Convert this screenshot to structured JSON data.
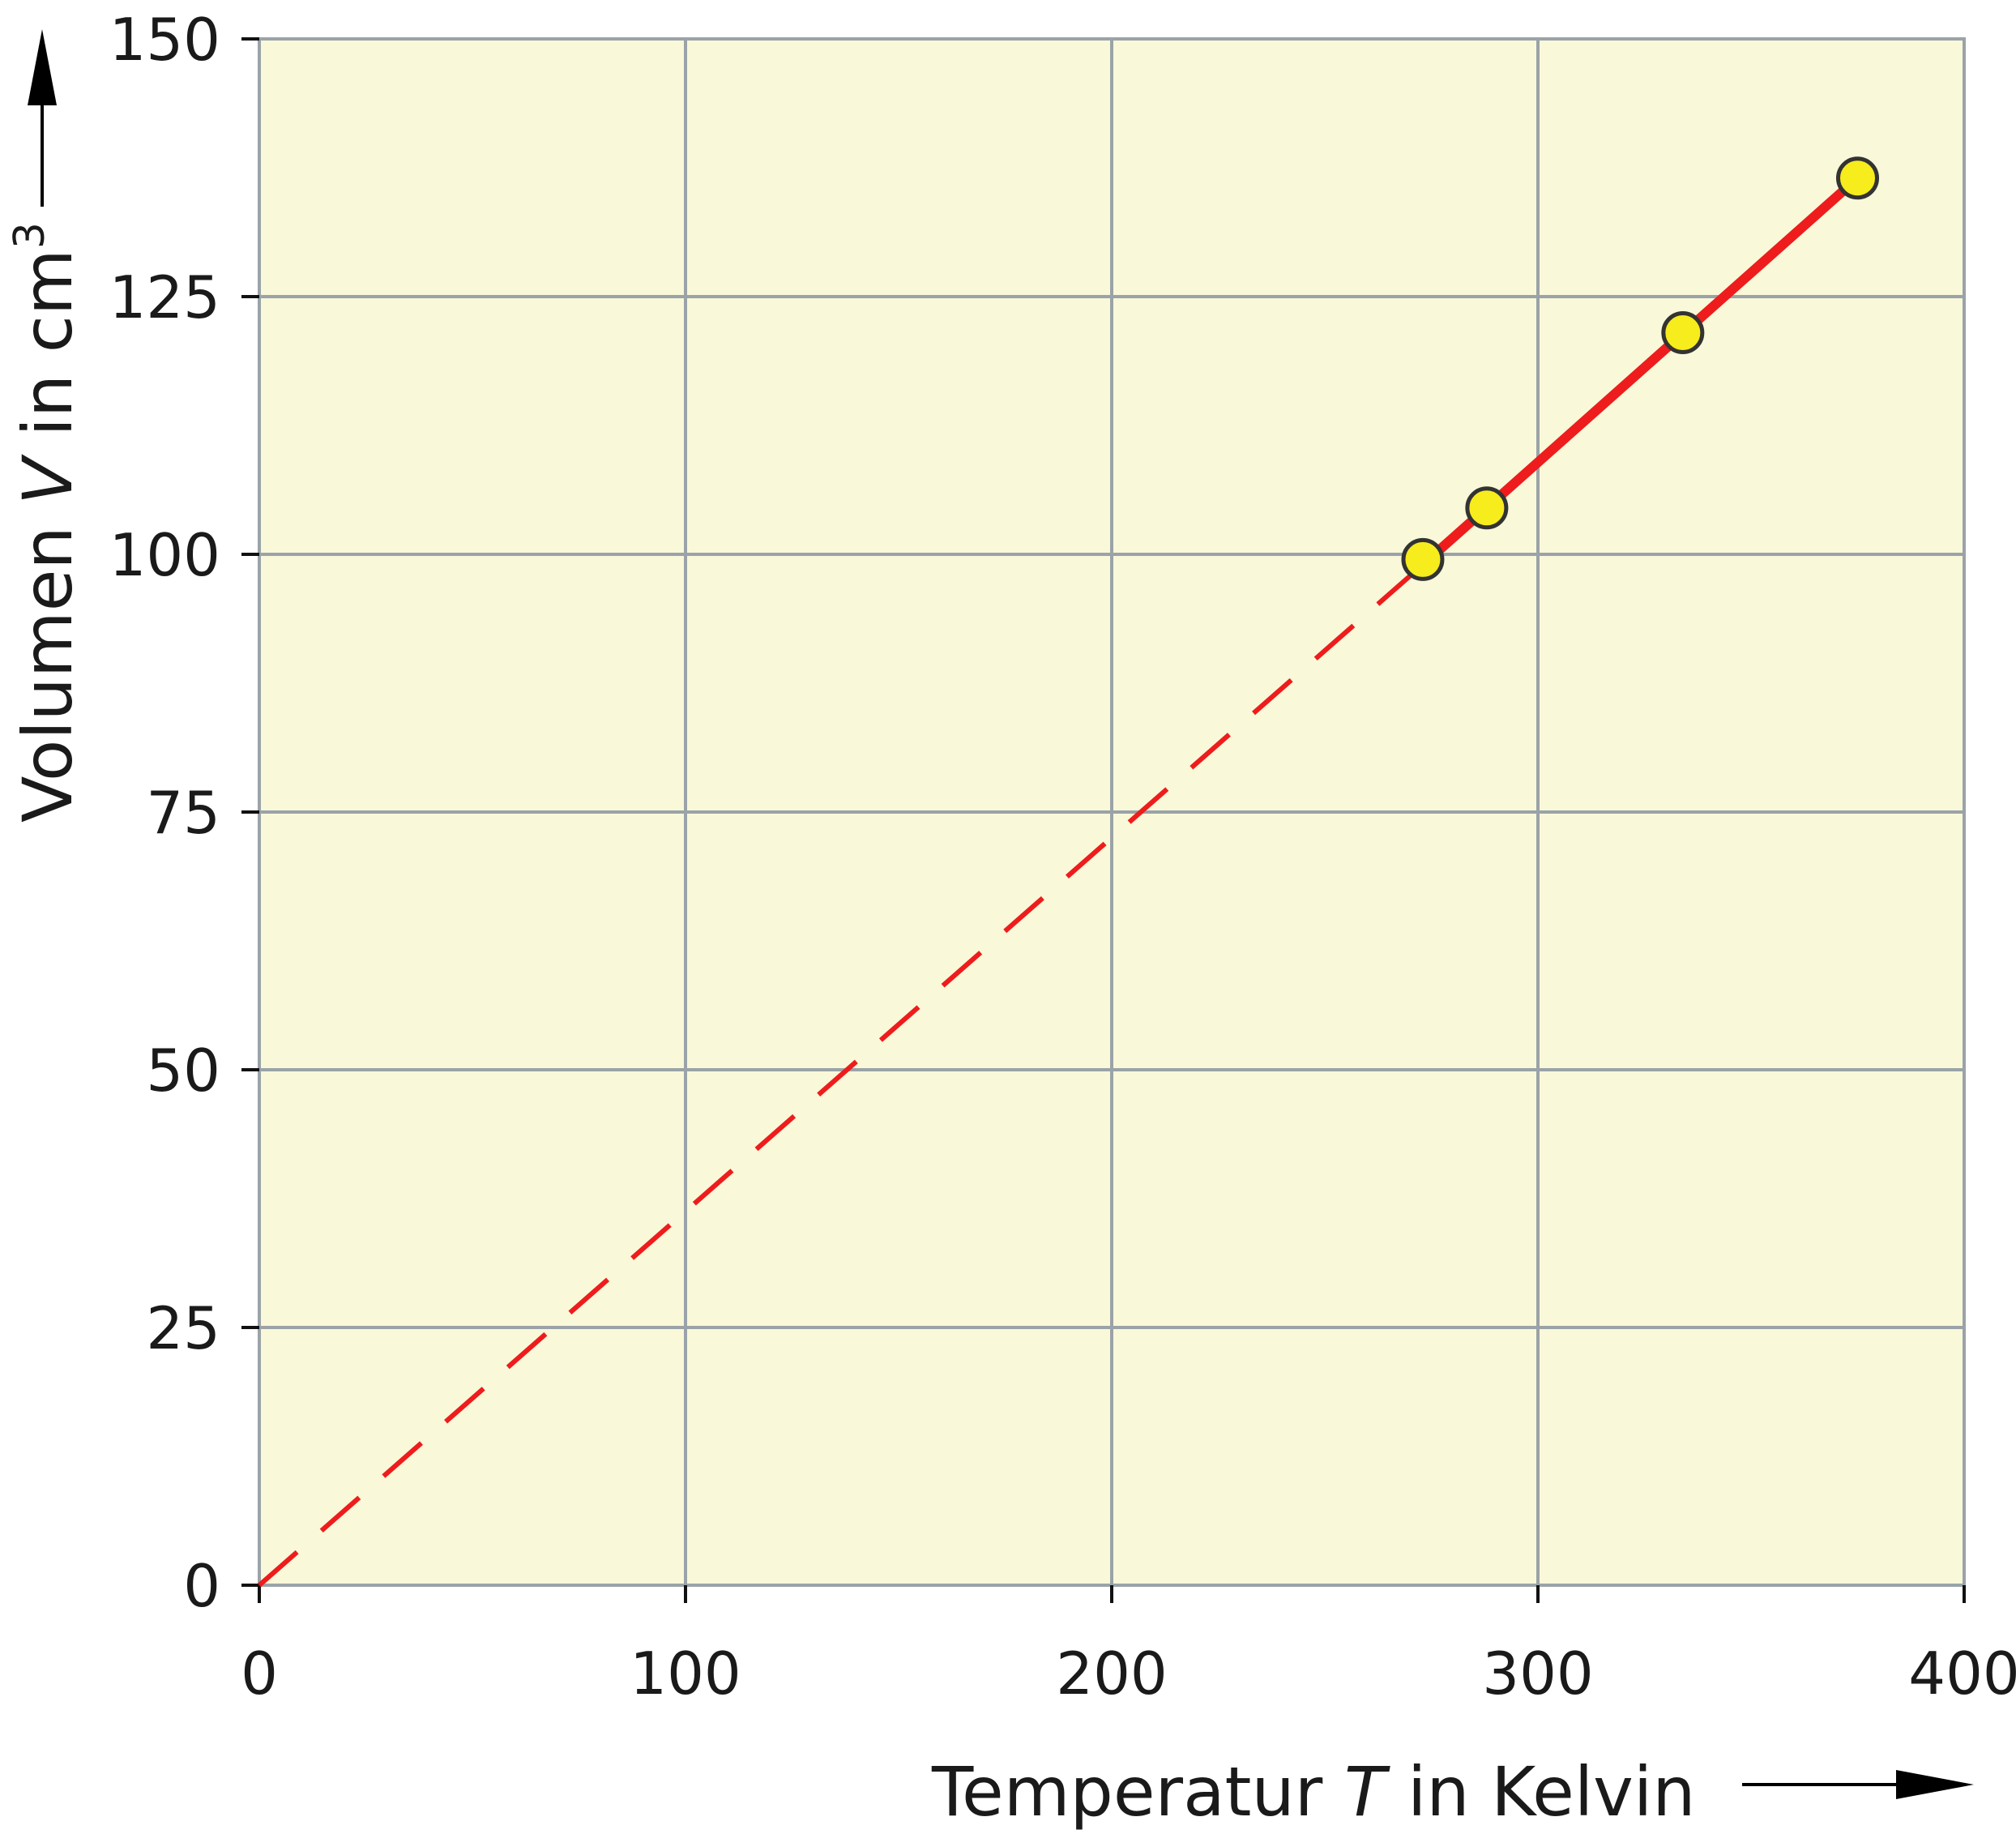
{
  "chart_data": {
    "type": "scatter",
    "xlabel": {
      "prefix": "Temperatur ",
      "symbol": "T",
      "suffix": " in Kelvin"
    },
    "ylabel": {
      "prefix": "Volumen ",
      "symbol": "V",
      "suffix": " in cm",
      "superscript": "3"
    },
    "xlim": [
      0,
      400
    ],
    "ylim": [
      0,
      150
    ],
    "x_ticks": [
      0,
      100,
      200,
      300,
      400
    ],
    "y_ticks": [
      0,
      25,
      50,
      75,
      100,
      125,
      150
    ],
    "grid": true,
    "points": [
      {
        "x": 273,
        "y": 99.5
      },
      {
        "x": 288,
        "y": 104.5
      },
      {
        "x": 334,
        "y": 121.5
      },
      {
        "x": 375,
        "y": 136.5
      }
    ],
    "fit_line": {
      "x": [
        273,
        375
      ],
      "y": [
        99,
        136.5
      ]
    },
    "extrapolation": {
      "x": [
        0,
        273
      ],
      "y": [
        0,
        99
      ]
    },
    "colors": {
      "plot_background": "#f9f8d9",
      "grid": "#9aa3a8",
      "line": "#ee1c1c",
      "point_fill": "#f7ec1c",
      "point_stroke": "#333333"
    }
  }
}
